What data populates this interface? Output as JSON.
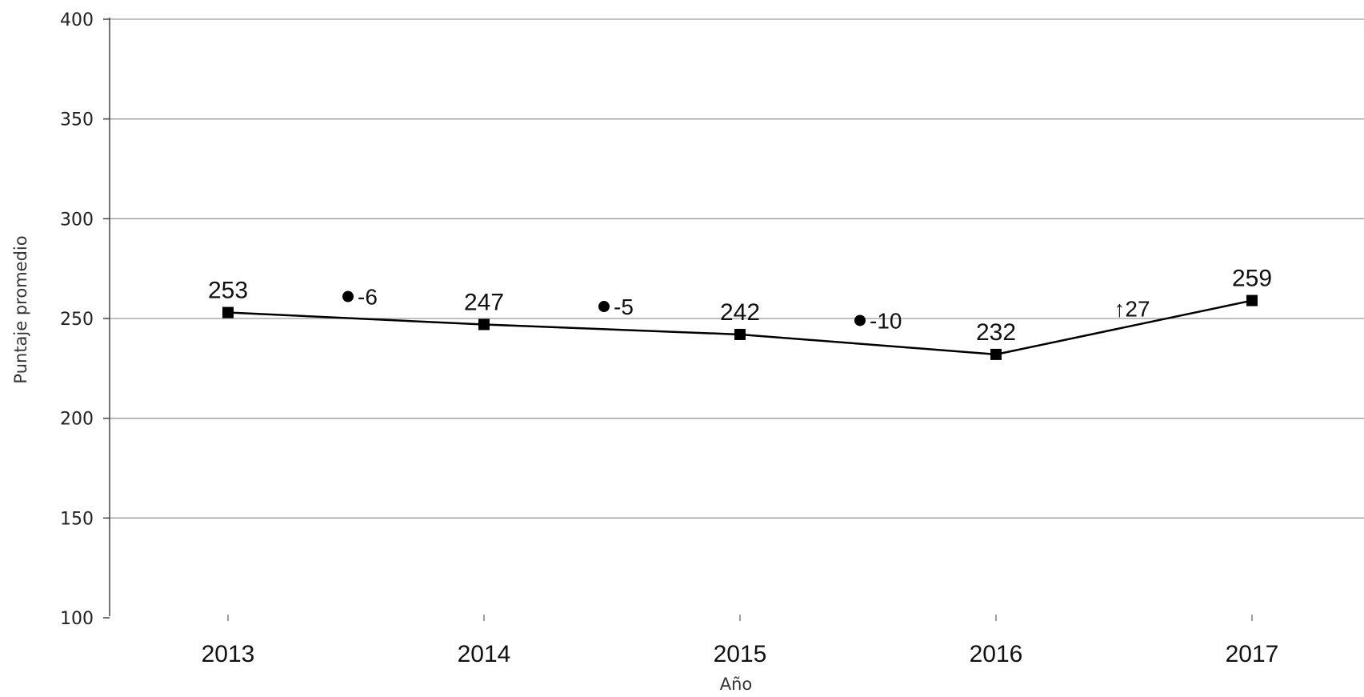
{
  "chart_data": {
    "type": "line",
    "title": "",
    "xlabel": "Año",
    "ylabel": "Puntaje promedio",
    "ylim": [
      100,
      400
    ],
    "yticks": [
      100,
      150,
      200,
      250,
      300,
      350,
      400
    ],
    "categories": [
      "2013",
      "2014",
      "2015",
      "2016",
      "2017"
    ],
    "series": [
      {
        "values": [
          253,
          247,
          242,
          232,
          259
        ],
        "marker": "square",
        "color": "#000000"
      }
    ],
    "data_labels": [
      "253",
      "247",
      "242",
      "232",
      "259"
    ],
    "changes": [
      {
        "between": [
          "2013",
          "2014"
        ],
        "marker": "dot",
        "text": "-6",
        "level": 257
      },
      {
        "between": [
          "2014",
          "2015"
        ],
        "marker": "dot",
        "text": "-5",
        "level": 252
      },
      {
        "between": [
          "2015",
          "2016"
        ],
        "marker": "dot",
        "text": "-10",
        "level": 245
      },
      {
        "between": [
          "2016",
          "2017"
        ],
        "marker": "up-arrow",
        "text": "↑27",
        "level": 251
      }
    ],
    "grid": true,
    "gridline_color": "#9a9a9a",
    "line_color": "#000000"
  }
}
